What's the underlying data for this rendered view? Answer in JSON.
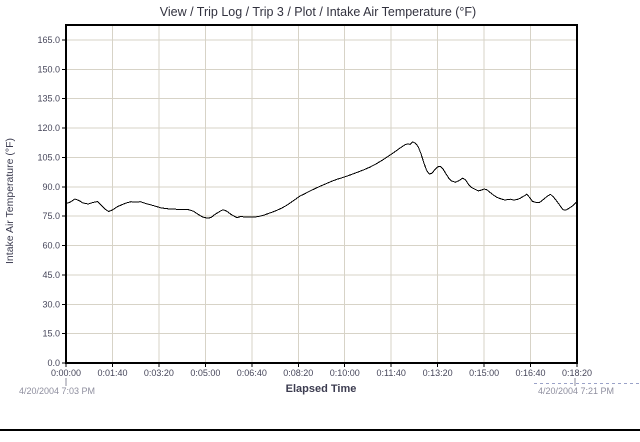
{
  "colors": {
    "background": "#ffffff",
    "frame": "#000000",
    "grid": "#d7d3c7",
    "line": "#000000",
    "title_text": "#32323f",
    "tick_text": "#46465a",
    "date_text": "#8e8e9e",
    "dashed_artifact": "#9aa2c8",
    "bottom_border": "#000000"
  },
  "chart_data": {
    "type": "line",
    "title": "View / Trip Log / Trip 3 / Plot / Intake Air Temperature (°F)",
    "xlabel": "Elapsed Time",
    "ylabel": "Intake Air Temperature (°F)",
    "start_datetime": "4/20/2004 7:03 PM",
    "end_datetime": "4/20/2004 7:21 PM",
    "grid": true,
    "legend": "none",
    "xlim_seconds": [
      0,
      1100
    ],
    "ylim": [
      0,
      172.5
    ],
    "x_tick_seconds": [
      0,
      100,
      200,
      300,
      400,
      500,
      600,
      700,
      800,
      900,
      1000,
      1100
    ],
    "x_tick_labels": [
      "0:00:00",
      "0:01:40",
      "0:03:20",
      "0:05:00",
      "0:06:40",
      "0:08:20",
      "0:10:00",
      "0:11:40",
      "0:13:20",
      "0:15:00",
      "0:16:40",
      "0:18:20"
    ],
    "y_tick_values": [
      0,
      15,
      30,
      45,
      60,
      75,
      90,
      105,
      120,
      135,
      150,
      165
    ],
    "y_tick_labels": [
      "0.0",
      "15.0",
      "30.0",
      "45.0",
      "60.0",
      "75.0",
      "90.0",
      "105.0",
      "120.0",
      "135.0",
      "150.0",
      "165.0"
    ],
    "series": [
      {
        "name": "Intake Air Temperature",
        "units": "°F",
        "points_t_seconds_temp_f": [
          [
            0,
            81.4
          ],
          [
            10,
            82.3
          ],
          [
            19,
            83.8
          ],
          [
            28,
            83.0
          ],
          [
            36,
            81.8
          ],
          [
            48,
            81.2
          ],
          [
            58,
            82.0
          ],
          [
            68,
            82.5
          ],
          [
            76,
            80.6
          ],
          [
            84,
            78.6
          ],
          [
            92,
            77.4
          ],
          [
            100,
            78.2
          ],
          [
            110,
            79.8
          ],
          [
            120,
            80.8
          ],
          [
            130,
            81.8
          ],
          [
            140,
            82.4
          ],
          [
            150,
            82.2
          ],
          [
            160,
            82.4
          ],
          [
            170,
            81.6
          ],
          [
            182,
            80.8
          ],
          [
            194,
            80.0
          ],
          [
            204,
            79.3
          ],
          [
            214,
            78.9
          ],
          [
            226,
            78.6
          ],
          [
            240,
            78.5
          ],
          [
            252,
            78.5
          ],
          [
            264,
            78.3
          ],
          [
            274,
            77.6
          ],
          [
            284,
            76.0
          ],
          [
            294,
            74.6
          ],
          [
            304,
            74.0
          ],
          [
            312,
            74.3
          ],
          [
            320,
            75.8
          ],
          [
            330,
            77.3
          ],
          [
            338,
            78.3
          ],
          [
            346,
            77.6
          ],
          [
            354,
            76.1
          ],
          [
            362,
            75.0
          ],
          [
            368,
            74.2
          ],
          [
            376,
            74.9
          ],
          [
            384,
            74.6
          ],
          [
            394,
            74.6
          ],
          [
            404,
            74.6
          ],
          [
            414,
            74.8
          ],
          [
            424,
            75.4
          ],
          [
            434,
            76.2
          ],
          [
            444,
            77.1
          ],
          [
            454,
            78.0
          ],
          [
            464,
            79.1
          ],
          [
            474,
            80.4
          ],
          [
            484,
            82.0
          ],
          [
            494,
            83.7
          ],
          [
            504,
            85.3
          ],
          [
            514,
            86.5
          ],
          [
            524,
            87.7
          ],
          [
            536,
            89.1
          ],
          [
            548,
            90.4
          ],
          [
            560,
            91.6
          ],
          [
            572,
            92.8
          ],
          [
            584,
            93.9
          ],
          [
            598,
            94.9
          ],
          [
            612,
            96.1
          ],
          [
            626,
            97.3
          ],
          [
            640,
            98.6
          ],
          [
            654,
            100.0
          ],
          [
            666,
            101.5
          ],
          [
            678,
            103.2
          ],
          [
            690,
            105.0
          ],
          [
            702,
            106.9
          ],
          [
            712,
            108.6
          ],
          [
            722,
            110.3
          ],
          [
            730,
            111.5
          ],
          [
            736,
            112.0
          ],
          [
            741,
            111.6
          ],
          [
            746,
            113.0
          ],
          [
            752,
            112.3
          ],
          [
            758,
            110.6
          ],
          [
            764,
            107.0
          ],
          [
            770,
            102.5
          ],
          [
            776,
            98.5
          ],
          [
            782,
            96.5
          ],
          [
            788,
            97.0
          ],
          [
            794,
            98.8
          ],
          [
            800,
            100.2
          ],
          [
            806,
            100.5
          ],
          [
            812,
            99.0
          ],
          [
            818,
            96.6
          ],
          [
            824,
            94.4
          ],
          [
            830,
            93.0
          ],
          [
            838,
            92.3
          ],
          [
            846,
            93.2
          ],
          [
            854,
            94.4
          ],
          [
            860,
            93.6
          ],
          [
            866,
            91.4
          ],
          [
            872,
            89.8
          ],
          [
            880,
            88.8
          ],
          [
            888,
            87.9
          ],
          [
            894,
            88.3
          ],
          [
            900,
            88.9
          ],
          [
            906,
            88.5
          ],
          [
            912,
            87.3
          ],
          [
            920,
            85.8
          ],
          [
            928,
            84.6
          ],
          [
            936,
            83.9
          ],
          [
            944,
            83.3
          ],
          [
            950,
            83.4
          ],
          [
            956,
            83.7
          ],
          [
            962,
            83.3
          ],
          [
            970,
            83.4
          ],
          [
            978,
            84.2
          ],
          [
            986,
            85.3
          ],
          [
            992,
            86.2
          ],
          [
            998,
            84.6
          ],
          [
            1004,
            82.6
          ],
          [
            1012,
            82.0
          ],
          [
            1020,
            82.1
          ],
          [
            1028,
            83.6
          ],
          [
            1036,
            85.2
          ],
          [
            1043,
            86.2
          ],
          [
            1050,
            84.6
          ],
          [
            1058,
            82.2
          ],
          [
            1064,
            80.2
          ],
          [
            1070,
            78.3
          ],
          [
            1076,
            78.1
          ],
          [
            1082,
            78.9
          ],
          [
            1090,
            80.2
          ],
          [
            1097,
            81.8
          ],
          [
            1100,
            82.6
          ]
        ]
      }
    ]
  }
}
